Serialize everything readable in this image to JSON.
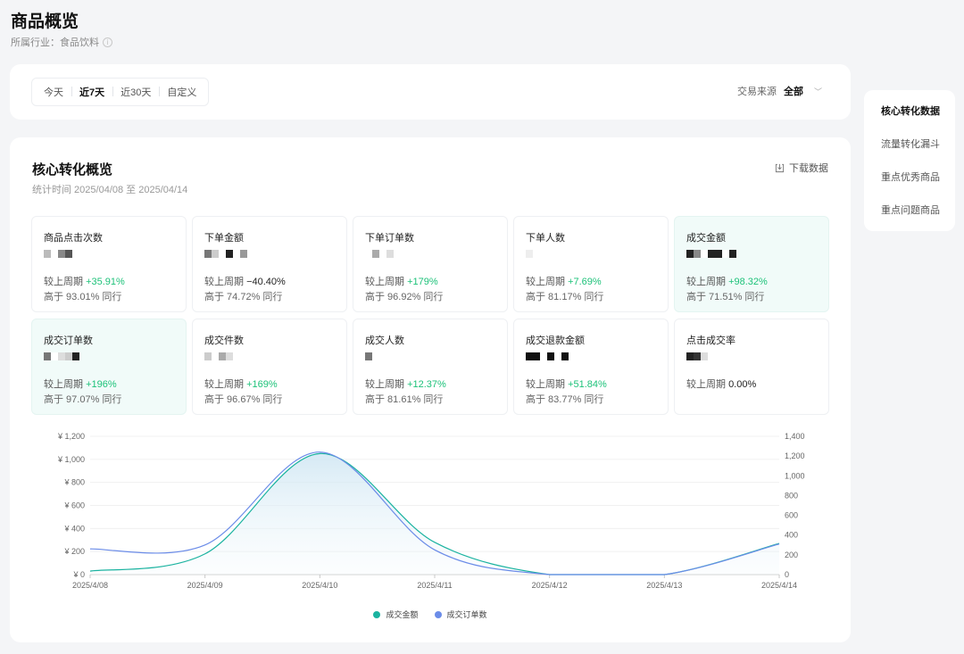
{
  "page": {
    "title": "商品概览",
    "industry": "所属行业：食品饮料"
  },
  "filter": {
    "ranges": [
      "今天",
      "近7天",
      "近30天",
      "自定义"
    ],
    "active_index": 1,
    "source_label": "交易来源",
    "source_value": "全部"
  },
  "overview": {
    "title": "核心转化概览",
    "period": "统计时间 2025/04/08 至 2025/04/14",
    "download_label": "下载数据",
    "metrics": [
      {
        "label": "商品点击次数",
        "cmp_prefix": "较上周期",
        "cmp_value": "+35.91%",
        "trend": "up",
        "peer": "高于 93.01% 同行",
        "highlight": false
      },
      {
        "label": "下单金额",
        "cmp_prefix": "较上周期",
        "cmp_value": "−40.40%",
        "trend": "flat",
        "peer": "高于 74.72% 同行",
        "highlight": false
      },
      {
        "label": "下单订单数",
        "cmp_prefix": "较上周期",
        "cmp_value": "+179%",
        "trend": "up",
        "peer": "高于 96.92% 同行",
        "highlight": false
      },
      {
        "label": "下单人数",
        "cmp_prefix": "较上周期",
        "cmp_value": "+7.69%",
        "trend": "up",
        "peer": "高于 81.17% 同行",
        "highlight": false
      },
      {
        "label": "成交金额",
        "cmp_prefix": "较上周期",
        "cmp_value": "+98.32%",
        "trend": "up",
        "peer": "高于 71.51% 同行",
        "highlight": true
      },
      {
        "label": "成交订单数",
        "cmp_prefix": "较上周期",
        "cmp_value": "+196%",
        "trend": "up",
        "peer": "高于 97.07% 同行",
        "highlight": true
      },
      {
        "label": "成交件数",
        "cmp_prefix": "较上周期",
        "cmp_value": "+169%",
        "trend": "up",
        "peer": "高于 96.67% 同行",
        "highlight": false
      },
      {
        "label": "成交人数",
        "cmp_prefix": "较上周期",
        "cmp_value": "+12.37%",
        "trend": "up",
        "peer": "高于 81.61% 同行",
        "highlight": false
      },
      {
        "label": "成交退款金额",
        "cmp_prefix": "较上周期",
        "cmp_value": "+51.84%",
        "trend": "up",
        "peer": "高于 83.77% 同行",
        "highlight": false
      },
      {
        "label": "点击成交率",
        "cmp_prefix": "较上周期",
        "cmp_value": "0.00%",
        "trend": "flat",
        "peer": "",
        "highlight": false
      }
    ]
  },
  "chart_data": {
    "type": "line",
    "categories": [
      "2025/4/08",
      "2025/4/09",
      "2025/4/10",
      "2025/4/11",
      "2025/4/12",
      "2025/4/13",
      "2025/4/14"
    ],
    "y_left_ticks": [
      "¥ 0",
      "¥ 200",
      "¥ 400",
      "¥ 600",
      "¥ 800",
      "¥ 1,000",
      "¥ 1,200"
    ],
    "y_right_ticks": [
      "0",
      "200",
      "400",
      "600",
      "800",
      "1,000",
      "1,200",
      "1,400"
    ],
    "ylim_left": [
      0,
      1200
    ],
    "ylim_right": [
      0,
      1400
    ],
    "series": [
      {
        "name": "成交金额",
        "axis": "left",
        "color": "#1bb3a0",
        "values": [
          30,
          180,
          1050,
          280,
          0,
          0,
          270
        ]
      },
      {
        "name": "成交订单数",
        "axis": "right",
        "color": "#6b8ce8",
        "values": [
          260,
          300,
          1240,
          250,
          0,
          0,
          310
        ]
      }
    ]
  },
  "anchors": {
    "items": [
      "核心转化数据",
      "流量转化漏斗",
      "重点优秀商品",
      "重点问题商品"
    ],
    "active_index": 0
  }
}
